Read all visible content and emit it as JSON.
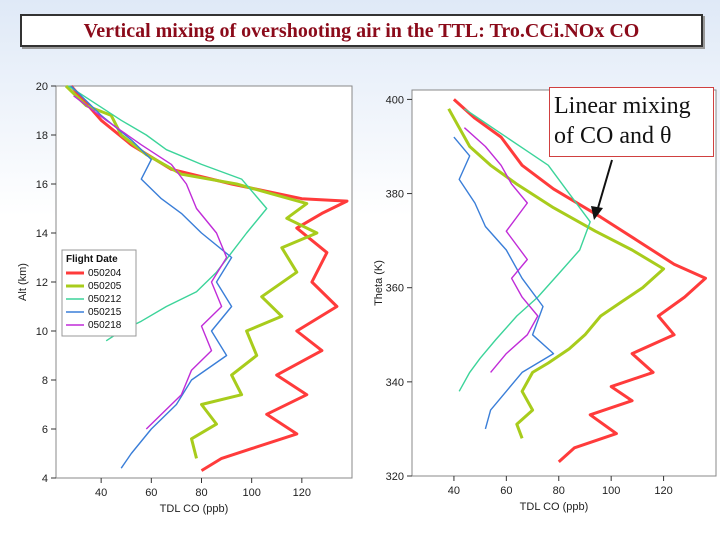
{
  "slide": {
    "title": "Vertical mixing of overshooting air in the TTL:  Tro.CCi.NOx CO",
    "callout_line1": "Linear mixing",
    "callout_line2": "of CO and θ"
  },
  "chart_data": [
    {
      "type": "line",
      "xlabel": "TDL CO (ppb)",
      "ylabel": "Alt (km)",
      "xlim": [
        22,
        140
      ],
      "ylim": [
        4,
        20
      ],
      "xticks": [
        40,
        60,
        80,
        100,
        120
      ],
      "yticks": [
        4,
        6,
        8,
        10,
        12,
        14,
        16,
        18,
        20
      ],
      "grid": false,
      "legend": {
        "title": "Flight Date",
        "placement": "middle-left"
      },
      "series": [
        {
          "name": "050204",
          "color": "#ff3b3b",
          "points": [
            [
              28,
              20
            ],
            [
              40,
              18.6
            ],
            [
              52,
              17.6
            ],
            [
              68,
              16.6
            ],
            [
              92,
              16.0
            ],
            [
              120,
              15.4
            ],
            [
              138,
              15.3
            ],
            [
              128,
              14.8
            ],
            [
              118,
              14.2
            ],
            [
              130,
              13.2
            ],
            [
              124,
              12.0
            ],
            [
              134,
              11.0
            ],
            [
              118,
              10.0
            ],
            [
              128,
              9.2
            ],
            [
              110,
              8.2
            ],
            [
              122,
              7.4
            ],
            [
              106,
              6.6
            ],
            [
              118,
              5.8
            ],
            [
              100,
              5.2
            ],
            [
              88,
              4.8
            ],
            [
              80,
              4.3
            ]
          ]
        },
        {
          "name": "050205",
          "color": "#a8cc1c",
          "points": [
            [
              26,
              20
            ],
            [
              34,
              19.2
            ],
            [
              44,
              18.8
            ],
            [
              48,
              18.0
            ],
            [
              58,
              17.2
            ],
            [
              72,
              16.4
            ],
            [
              94,
              16.0
            ],
            [
              108,
              15.6
            ],
            [
              122,
              15.2
            ],
            [
              114,
              14.6
            ],
            [
              126,
              14.0
            ],
            [
              112,
              13.4
            ],
            [
              118,
              12.4
            ],
            [
              104,
              11.4
            ],
            [
              112,
              10.6
            ],
            [
              98,
              10.0
            ],
            [
              102,
              9.0
            ],
            [
              92,
              8.2
            ],
            [
              96,
              7.4
            ],
            [
              80,
              7.0
            ],
            [
              86,
              6.2
            ],
            [
              76,
              5.6
            ],
            [
              78,
              4.8
            ]
          ]
        },
        {
          "name": "050212",
          "color": "#3cd49a",
          "points": [
            [
              27,
              20
            ],
            [
              36,
              19.4
            ],
            [
              48,
              18.6
            ],
            [
              58,
              18.0
            ],
            [
              66,
              17.4
            ],
            [
              80,
              16.8
            ],
            [
              96,
              16.2
            ],
            [
              106,
              15.0
            ],
            [
              98,
              14.0
            ],
            [
              92,
              13.2
            ],
            [
              86,
              12.4
            ],
            [
              78,
              11.6
            ],
            [
              66,
              11.0
            ],
            [
              56,
              10.4
            ],
            [
              48,
              10.0
            ],
            [
              42,
              9.6
            ]
          ]
        },
        {
          "name": "050215",
          "color": "#3a7ed8",
          "points": [
            [
              28,
              20
            ],
            [
              40,
              18.8
            ],
            [
              52,
              17.8
            ],
            [
              60,
              17.0
            ],
            [
              56,
              16.2
            ],
            [
              64,
              15.4
            ],
            [
              72,
              14.8
            ],
            [
              80,
              14.0
            ],
            [
              92,
              13.0
            ],
            [
              86,
              12.0
            ],
            [
              92,
              11.0
            ],
            [
              84,
              10.0
            ],
            [
              90,
              9.0
            ],
            [
              76,
              8.0
            ],
            [
              70,
              7.0
            ],
            [
              60,
              6.0
            ],
            [
              52,
              5.0
            ],
            [
              48,
              4.4
            ]
          ]
        },
        {
          "name": "050218",
          "color": "#c02cd8",
          "points": [
            [
              29,
              19.6
            ],
            [
              42,
              18.6
            ],
            [
              56,
              17.6
            ],
            [
              68,
              16.8
            ],
            [
              74,
              16.0
            ],
            [
              78,
              15.0
            ],
            [
              86,
              14.0
            ],
            [
              90,
              13.0
            ],
            [
              84,
              12.0
            ],
            [
              88,
              11.0
            ],
            [
              80,
              10.2
            ],
            [
              84,
              9.2
            ],
            [
              76,
              8.4
            ],
            [
              72,
              7.4
            ],
            [
              64,
              6.6
            ],
            [
              58,
              6.0
            ]
          ]
        }
      ]
    },
    {
      "type": "line",
      "xlabel": "TDL CO (ppb)",
      "ylabel": "Theta (K)",
      "xlim": [
        24,
        140
      ],
      "ylim": [
        320,
        402
      ],
      "xticks": [
        40,
        60,
        80,
        100,
        120
      ],
      "yticks": [
        320,
        340,
        360,
        380,
        400
      ],
      "grid": false,
      "legend": {
        "placement": "none"
      },
      "series": [
        {
          "name": "050204",
          "color": "#ff3b3b",
          "points": [
            [
              40,
              400
            ],
            [
              48,
              396
            ],
            [
              58,
              392
            ],
            [
              66,
              386
            ],
            [
              78,
              381
            ],
            [
              96,
              375
            ],
            [
              110,
              370
            ],
            [
              124,
              365
            ],
            [
              136,
              362
            ],
            [
              128,
              358
            ],
            [
              118,
              354
            ],
            [
              124,
              350
            ],
            [
              108,
              346
            ],
            [
              116,
              342
            ],
            [
              100,
              339
            ],
            [
              108,
              336
            ],
            [
              92,
              333
            ],
            [
              102,
              329
            ],
            [
              86,
              326
            ],
            [
              80,
              323
            ]
          ]
        },
        {
          "name": "050205",
          "color": "#a8cc1c",
          "points": [
            [
              38,
              398
            ],
            [
              42,
              394
            ],
            [
              46,
              390
            ],
            [
              54,
              386
            ],
            [
              64,
              382
            ],
            [
              78,
              377
            ],
            [
              94,
              372
            ],
            [
              108,
              368
            ],
            [
              120,
              364
            ],
            [
              112,
              360
            ],
            [
              104,
              357
            ],
            [
              96,
              354
            ],
            [
              90,
              350
            ],
            [
              84,
              347
            ],
            [
              76,
              344
            ],
            [
              70,
              342
            ],
            [
              66,
              338
            ],
            [
              70,
              334
            ],
            [
              64,
              331
            ],
            [
              66,
              328
            ]
          ]
        },
        {
          "name": "050212",
          "color": "#3cd49a",
          "points": [
            [
              44,
              398
            ],
            [
              52,
              395
            ],
            [
              60,
              392
            ],
            [
              68,
              389
            ],
            [
              76,
              386
            ],
            [
              84,
              380
            ],
            [
              92,
              374
            ],
            [
              88,
              368
            ],
            [
              80,
              363
            ],
            [
              72,
              358
            ],
            [
              64,
              354
            ],
            [
              56,
              349
            ],
            [
              50,
              345
            ],
            [
              46,
              342
            ],
            [
              42,
              338
            ]
          ]
        },
        {
          "name": "050215",
          "color": "#3a7ed8",
          "points": [
            [
              40,
              392
            ],
            [
              46,
              388
            ],
            [
              42,
              383
            ],
            [
              48,
              378
            ],
            [
              52,
              373
            ],
            [
              60,
              368
            ],
            [
              66,
              362
            ],
            [
              74,
              356
            ],
            [
              70,
              350
            ],
            [
              78,
              346
            ],
            [
              66,
              342
            ],
            [
              60,
              338
            ],
            [
              54,
              334
            ],
            [
              52,
              330
            ]
          ]
        },
        {
          "name": "050218",
          "color": "#c02cd8",
          "points": [
            [
              44,
              394
            ],
            [
              52,
              390
            ],
            [
              58,
              386
            ],
            [
              62,
              382
            ],
            [
              68,
              378
            ],
            [
              60,
              372
            ],
            [
              68,
              366
            ],
            [
              62,
              362
            ],
            [
              66,
              358
            ],
            [
              72,
              354
            ],
            [
              68,
              350
            ],
            [
              60,
              346
            ],
            [
              54,
              342
            ]
          ]
        }
      ]
    }
  ]
}
